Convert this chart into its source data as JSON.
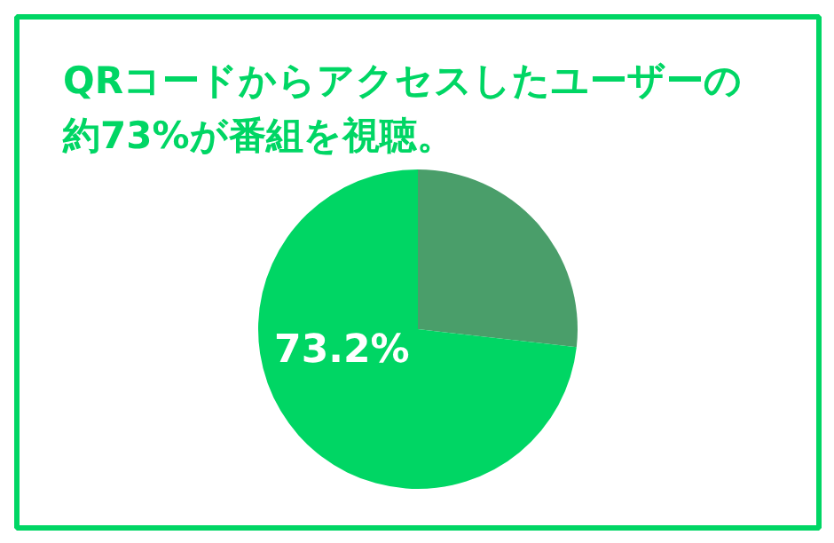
{
  "chart_data": {
    "type": "pie",
    "title": "QRコードからアクセスしたユーザーの約73%が番組を視聴。",
    "categories": [
      null,
      null
    ],
    "values": [
      26.8,
      73.2
    ],
    "colors": [
      "#4a9e6a",
      "#00d664"
    ],
    "value_labels": [
      null,
      "73.2%"
    ]
  }
}
